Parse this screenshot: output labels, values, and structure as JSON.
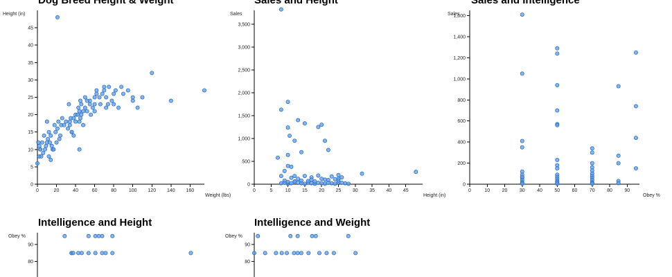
{
  "accent_color": "#5c9eea",
  "chart_data": [
    {
      "id": "breed",
      "type": "scatter",
      "title": "Dog Breed Height & Weight",
      "xlabel": "Weight (lbs)",
      "ylabel": "Height (in)",
      "xlim": [
        0,
        175
      ],
      "ylim": [
        0,
        50
      ],
      "xticks": [
        0,
        20,
        40,
        60,
        80,
        100,
        120,
        140,
        160
      ],
      "yticks": [
        0,
        5,
        10,
        15,
        20,
        25,
        30,
        35,
        40,
        45
      ],
      "grid": false,
      "x": [
        21,
        0,
        2,
        3,
        1,
        4,
        2,
        5,
        6,
        3,
        8,
        9,
        10,
        7,
        11,
        12,
        14,
        13,
        15,
        16,
        17,
        18,
        14,
        12,
        10,
        19,
        20,
        22,
        21,
        24,
        25,
        23,
        26,
        28,
        30,
        32,
        33,
        34,
        35,
        36,
        34,
        38,
        40,
        40,
        42,
        43,
        44,
        45,
        45,
        46,
        48,
        50,
        52,
        55,
        55,
        58,
        60,
        60,
        62,
        65,
        66,
        68,
        70,
        72,
        72,
        75,
        78,
        80,
        80,
        85,
        88,
        90,
        95,
        100,
        100,
        105,
        110,
        120,
        140,
        175,
        44,
        36,
        38,
        46,
        44,
        50,
        60,
        62,
        48,
        52,
        56,
        70,
        74,
        82
      ],
      "y": [
        48,
        6,
        8,
        10,
        12,
        8,
        11,
        12,
        9,
        10,
        10,
        11,
        12,
        14,
        13,
        15,
        14,
        12,
        11,
        10,
        10,
        17,
        7,
        8,
        18,
        15,
        12,
        18,
        16,
        14,
        17,
        13,
        19,
        17,
        18,
        16,
        23,
        17,
        19,
        15,
        18,
        19,
        20,
        18,
        20,
        22,
        21,
        24,
        19,
        20,
        21,
        22,
        21,
        23,
        24,
        22,
        25,
        23,
        27,
        25,
        23,
        26,
        28,
        25,
        22,
        28,
        24,
        26,
        23,
        22,
        28,
        26,
        27,
        24,
        25,
        22,
        25,
        32,
        24,
        27,
        10,
        15,
        14,
        23,
        18,
        25,
        21,
        26,
        17,
        24,
        20,
        27,
        23,
        27
      ]
    },
    {
      "id": "sales_height",
      "type": "scatter",
      "title": "Sales and Height",
      "xlabel": "Height (in)",
      "ylabel": "Sales",
      "xlim": [
        0,
        50
      ],
      "ylim": [
        0,
        3800
      ],
      "xticks": [
        0,
        5,
        10,
        15,
        20,
        25,
        30,
        35,
        40,
        45
      ],
      "yticks": [
        0,
        500,
        1000,
        1500,
        2000,
        2500,
        3000,
        3500
      ],
      "grid": false,
      "x": [
        8,
        10,
        8,
        10,
        10.5,
        9,
        13,
        15,
        20,
        19,
        21,
        12,
        22,
        14,
        10,
        11,
        12,
        8,
        9,
        10,
        11,
        12,
        13,
        14,
        15,
        16,
        17,
        18,
        19,
        20,
        21,
        22,
        23,
        24,
        25,
        26,
        27,
        28,
        9,
        13,
        17,
        21,
        25,
        10,
        12,
        14,
        16,
        18,
        20,
        22,
        24,
        26,
        19,
        23,
        25,
        15,
        17,
        11,
        32,
        48,
        7,
        10,
        8,
        25
      ],
      "y": [
        3820,
        1800,
        1630,
        1240,
        1060,
        290,
        1400,
        1330,
        1300,
        1250,
        950,
        950,
        750,
        700,
        640,
        380,
        180,
        20,
        30,
        10,
        20,
        60,
        30,
        20,
        10,
        40,
        20,
        10,
        30,
        20,
        10,
        30,
        20,
        10,
        40,
        30,
        20,
        10,
        80,
        120,
        150,
        100,
        120,
        50,
        60,
        80,
        70,
        60,
        120,
        90,
        110,
        150,
        190,
        170,
        200,
        180,
        100,
        140,
        230,
        270,
        580,
        400,
        180,
        80
      ]
    },
    {
      "id": "sales_intel",
      "type": "scatter",
      "title": "Sales and Intelligence",
      "xlabel": "Obey %",
      "ylabel": "Sales",
      "xlim": [
        0,
        97
      ],
      "ylim": [
        0,
        1650
      ],
      "xticks": [
        0,
        10,
        20,
        30,
        40,
        50,
        60,
        70,
        80,
        90
      ],
      "yticks": [
        0,
        200,
        400,
        600,
        800,
        1000,
        1200,
        1400,
        1600
      ],
      "grid": false,
      "x": [
        30,
        30,
        30,
        30,
        30,
        30,
        30,
        30,
        30,
        30,
        30,
        30,
        50,
        50,
        50,
        50,
        50,
        50,
        50,
        50,
        50,
        50,
        50,
        50,
        50,
        50,
        50,
        50,
        70,
        70,
        70,
        70,
        70,
        70,
        70,
        70,
        70,
        70,
        70,
        70,
        85,
        85,
        85,
        85,
        85,
        95,
        95,
        95,
        95
      ],
      "y": [
        1610,
        1050,
        410,
        350,
        120,
        90,
        60,
        40,
        20,
        10,
        70,
        5,
        1290,
        1240,
        940,
        700,
        570,
        560,
        230,
        180,
        150,
        90,
        70,
        50,
        30,
        10,
        20,
        5,
        340,
        300,
        200,
        160,
        130,
        100,
        80,
        60,
        40,
        20,
        10,
        5,
        930,
        270,
        200,
        30,
        10,
        1250,
        740,
        440,
        150
      ]
    },
    {
      "id": "intel_height",
      "type": "scatter",
      "title": "Intelligence and Height",
      "xlabel": "",
      "ylabel": "Obey %",
      "xlim": [
        0,
        50
      ],
      "ylim": [
        30,
        97
      ],
      "yticks": [
        80,
        90
      ],
      "grid": false,
      "x": [
        8,
        10,
        13,
        15,
        17,
        18,
        19,
        22,
        10,
        10.5,
        12,
        15,
        17,
        19,
        20,
        22,
        45
      ],
      "y": [
        95,
        85,
        85,
        95,
        95,
        95,
        95,
        95,
        85,
        85,
        85,
        85,
        85,
        85,
        85,
        85,
        85
      ]
    },
    {
      "id": "intel_weight",
      "type": "scatter",
      "title": "Intelligence and Weight",
      "xlabel": "",
      "ylabel": "Obey %",
      "xlim": [
        0,
        180
      ],
      "ylim": [
        30,
        97
      ],
      "yticks": [
        80,
        90
      ],
      "grid": false,
      "x": [
        5,
        50,
        60,
        80,
        85,
        130,
        0,
        15,
        30,
        38,
        45,
        55,
        60,
        65,
        75,
        90,
        100,
        110,
        140
      ],
      "y": [
        95,
        95,
        95,
        95,
        95,
        95,
        85,
        85,
        85,
        85,
        85,
        85,
        85,
        85,
        85,
        85,
        85,
        85,
        85
      ]
    }
  ]
}
